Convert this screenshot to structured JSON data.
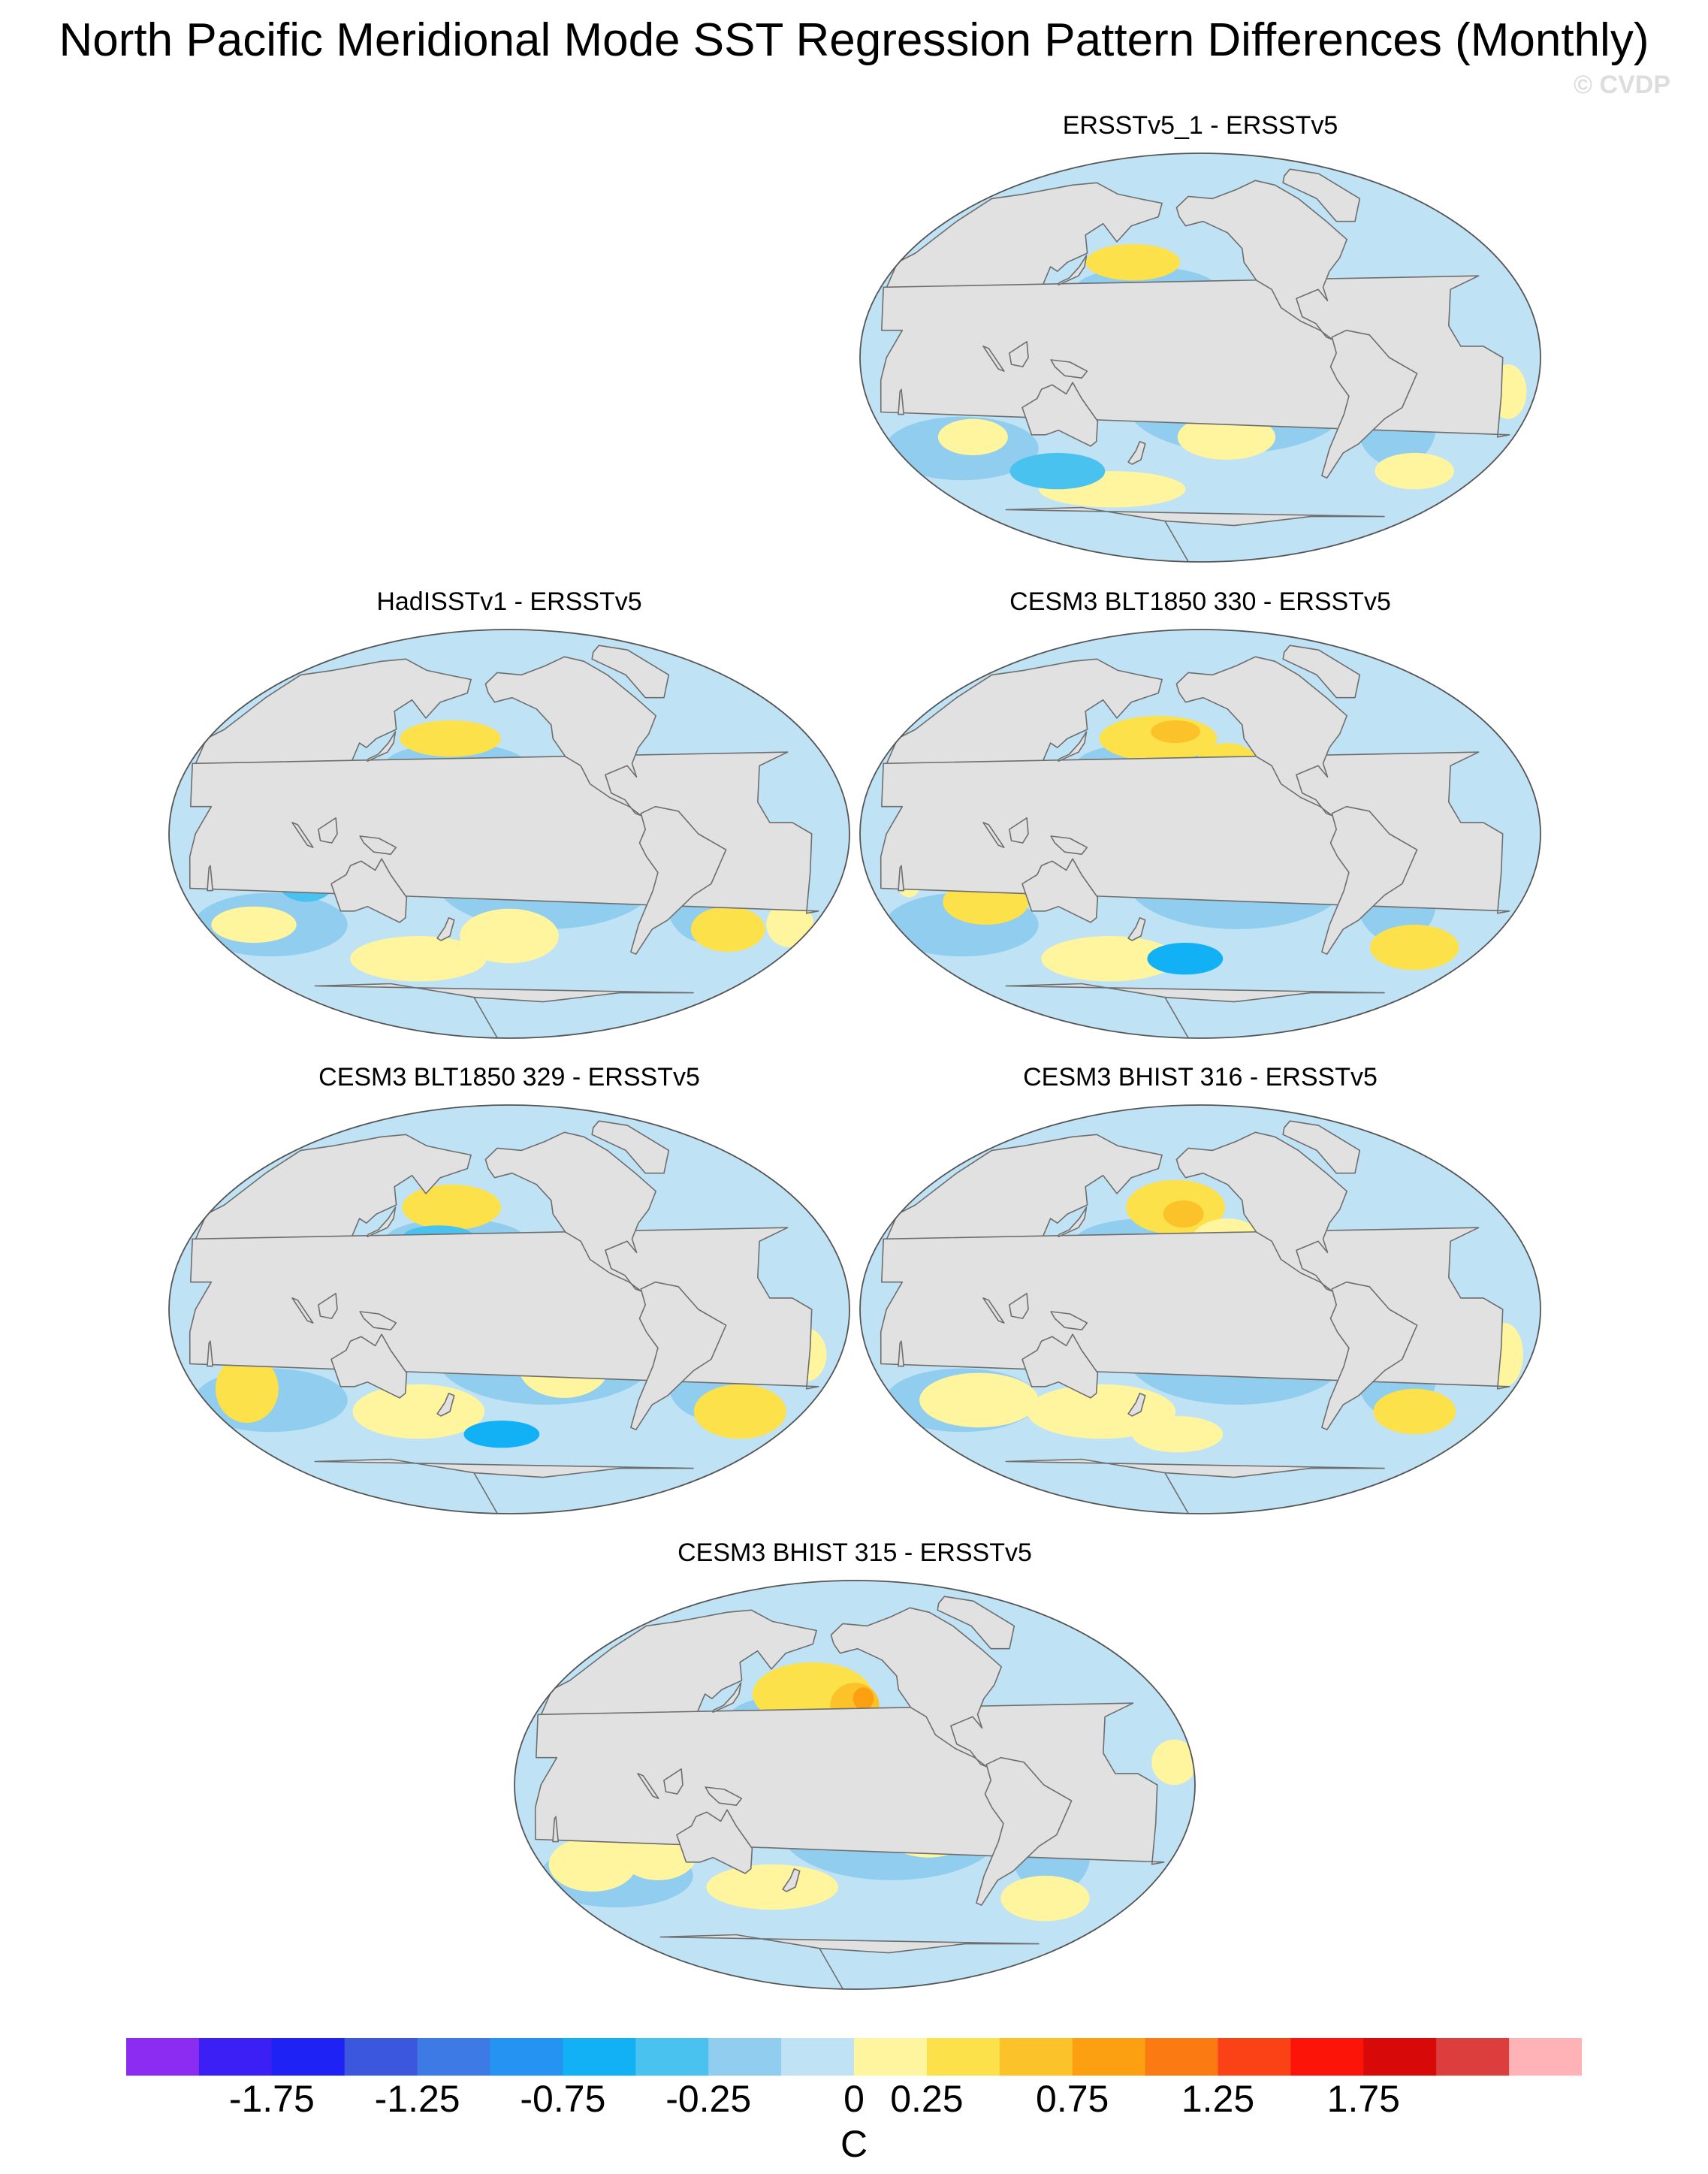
{
  "title": "North Pacific Meridional Mode SST Regression Pattern Differences (Monthly)",
  "watermark": "© CVDP",
  "projection": "Robinson, Pacific-centered",
  "colors": {
    "land": "#e1e1e1",
    "coastline": "#6e6e6e",
    "ocean_near_zero_negative": "#bfe2f5",
    "ocean_near_zero_positive": "#fff59e"
  },
  "panels": [
    {
      "title": "ERSSTv5_1 - ERSSTv5"
    },
    {
      "title": "HadISSTv1 - ERSSTv5"
    },
    {
      "title": "CESM3 BLT1850 330 - ERSSTv5"
    },
    {
      "title": "CESM3 BLT1850 329 - ERSSTv5"
    },
    {
      "title": "CESM3 BHIST 316 - ERSSTv5"
    },
    {
      "title": "CESM3 BHIST 315 - ERSSTv5"
    }
  ],
  "colorbar": {
    "unit": "C",
    "levels": [
      -2,
      -1.75,
      -1.5,
      -1.25,
      -1,
      -0.75,
      -0.5,
      -0.25,
      0,
      0.25,
      0.5,
      0.75,
      1,
      1.25,
      1.5,
      1.75,
      2
    ],
    "tick_labels": [
      "-1.75",
      "-1.25",
      "-0.75",
      "-0.25",
      "0",
      "0.25",
      "0.75",
      "1.25",
      "1.75"
    ],
    "colors": [
      "#8c2bf2",
      "#3b1ff5",
      "#1e22f5",
      "#3b57de",
      "#3d7ae6",
      "#2493f2",
      "#12b0f5",
      "#4ac2f0",
      "#91cdee",
      "#bfe2f5",
      "#fff59e",
      "#fde14a",
      "#fcc22a",
      "#fca012",
      "#fc7a12",
      "#fb4216",
      "#fc1409",
      "#d80a09",
      "#dc3d3d",
      "#ffb3b6"
    ]
  }
}
